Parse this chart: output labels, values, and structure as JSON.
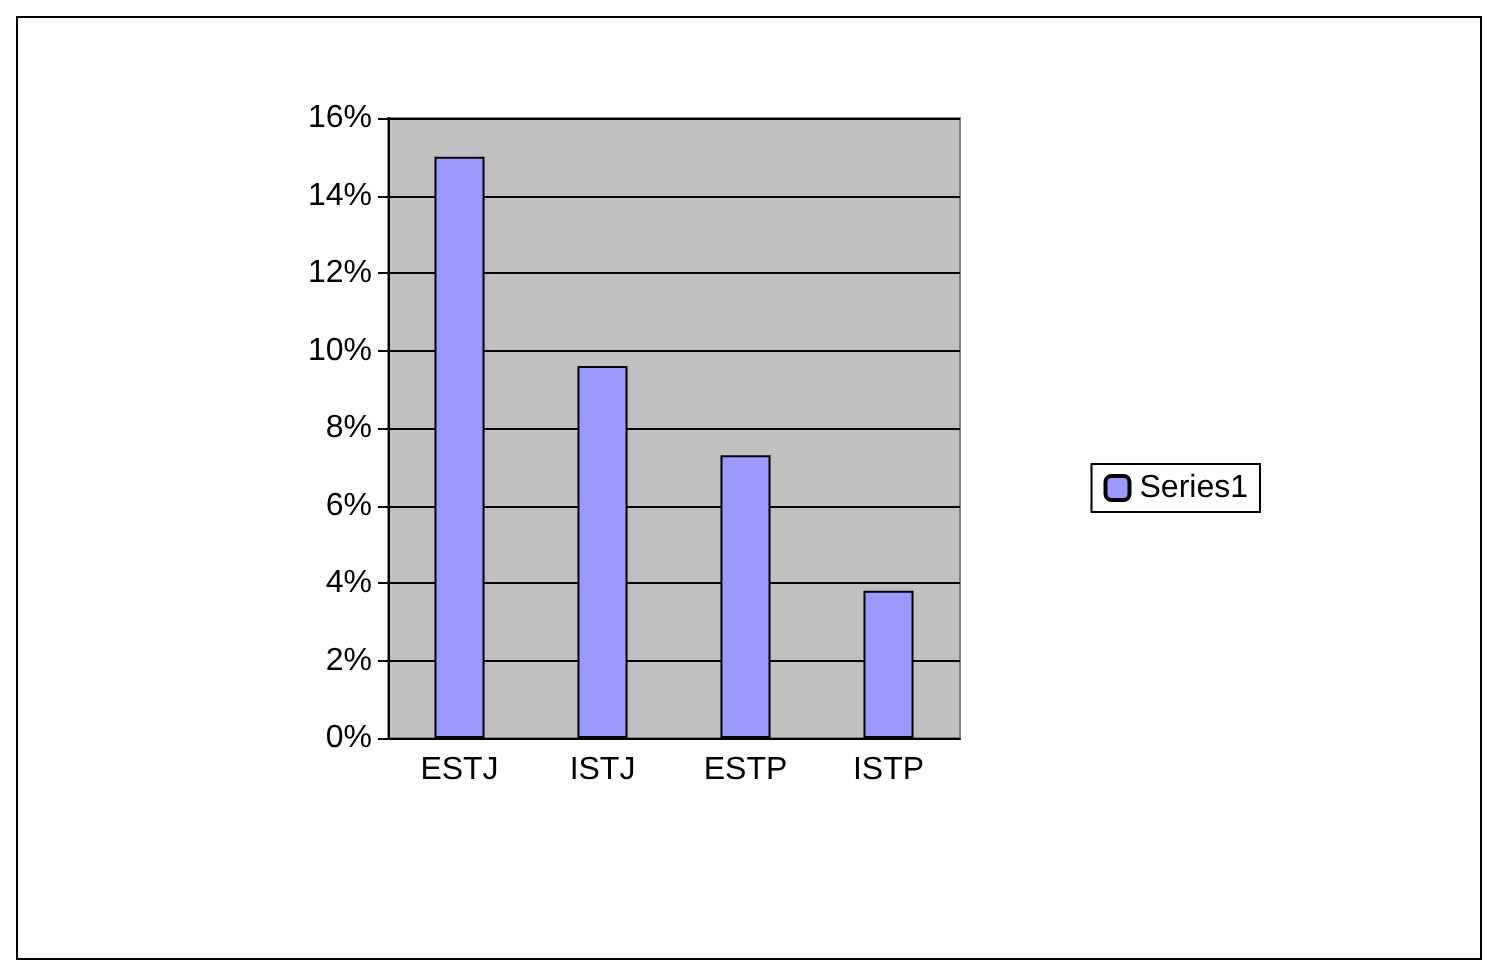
{
  "chart_data": {
    "type": "bar",
    "categories": [
      "ESTJ",
      "ISTJ",
      "ESTP",
      "ISTP"
    ],
    "series": [
      {
        "name": "Series1",
        "color": "#9999ff",
        "values": [
          15,
          9.6,
          7.3,
          3.8
        ]
      }
    ],
    "ylim": [
      0,
      16
    ],
    "yticks": [
      {
        "value": 0,
        "label": "0%"
      },
      {
        "value": 2,
        "label": "2%"
      },
      {
        "value": 4,
        "label": "4%"
      },
      {
        "value": 6,
        "label": "6%"
      },
      {
        "value": 8,
        "label": "8%"
      },
      {
        "value": 10,
        "label": "10%"
      },
      {
        "value": 12,
        "label": "12%"
      },
      {
        "value": 14,
        "label": "14%"
      },
      {
        "value": 16,
        "label": "16%"
      }
    ],
    "grid": "y",
    "legend": "right"
  }
}
